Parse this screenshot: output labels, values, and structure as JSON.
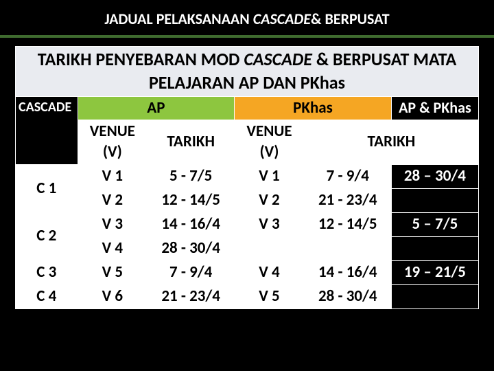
{
  "title_1": "JADUAL PELAKSANAAN ",
  "title_em": "CASCADE",
  "title_2": "& BERPUSAT",
  "main_hdr_1": "TARIKH PENYEBARAN MOD ",
  "main_hdr_em": "CASCADE",
  "main_hdr_2": "  & BERPUSAT MATA PELAJARAN AP DAN PKhas",
  "col_ap": "AP",
  "col_pkhas": "PKhas",
  "col_appkhas": "AP & PKhas",
  "lbl_cascade": "CASCADE",
  "sub_venue": "VENUE (V)",
  "sub_tarikh": "TARIKH",
  "rows": {
    "c1": "C 1",
    "c2": "C 2",
    "c3": "C 3",
    "c4": "C 4",
    "v1": "V 1",
    "v1d": "5 - 7/5",
    "v2": "V 2",
    "v2d": "12 - 14/5",
    "v3": "V 3",
    "v3d": "14 - 16/4",
    "v4": "V 4",
    "v4d": "28 - 30/4",
    "v5": "V 5",
    "v5d": "7 - 9/4",
    "v6": "V 6",
    "v6d": "21 - 23/4",
    "pv1": "V 1",
    "pv1d": "7 - 9/4",
    "a1": "28 – 30/4",
    "pv2": "V 2",
    "pv2d": "21 - 23/4",
    "pv3": "V 3",
    "pv3d": "12 - 14/5",
    "a2": "5 – 7/5",
    "pv4": "V 4",
    "pv4d": "14 - 16/4",
    "a3": "19 – 21/5",
    "pv5": "V 5",
    "pv5d": "28 - 30/4"
  },
  "colors": {
    "bg": "#000000",
    "rule": "#3f6b2f",
    "hdr_main_bg": "#e9ebf0",
    "ap_bg": "#8dc63f",
    "pkhas_bg": "#f5a623",
    "white": "#ffffff"
  }
}
